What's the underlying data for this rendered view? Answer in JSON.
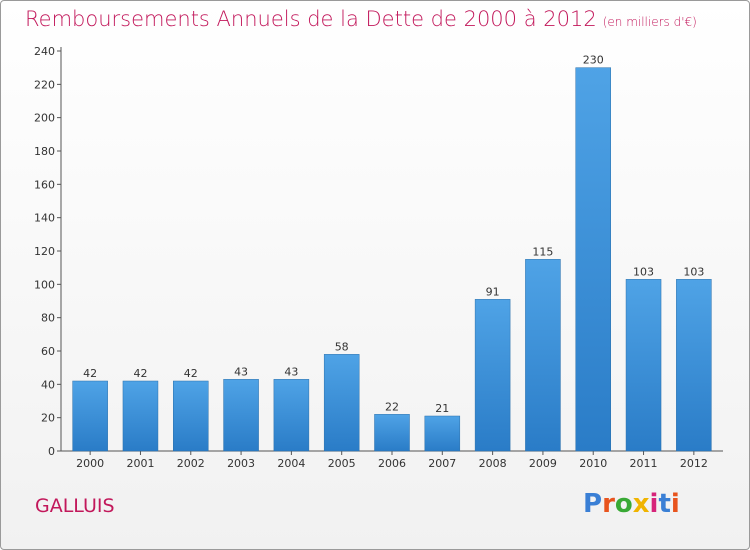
{
  "header": {
    "title": "Remboursements Annuels de la Dette de 2000 à 2012",
    "unit_note": "(en milliers d'€)"
  },
  "footer": {
    "commune": "GALLUIS",
    "logo_text": "Proxiti",
    "logo_colors": [
      "#3a7fd5",
      "#e8541e",
      "#39a935",
      "#f0b400",
      "#d6247a",
      "#3a7fd5",
      "#e8541e"
    ]
  },
  "chart_data": {
    "type": "bar",
    "title": "Remboursements Annuels de la Dette de 2000 à 2012",
    "subtitle": "(en milliers d'€)",
    "xlabel": "",
    "ylabel": "",
    "categories": [
      "2000",
      "2001",
      "2002",
      "2003",
      "2004",
      "2005",
      "2006",
      "2007",
      "2008",
      "2009",
      "2010",
      "2011",
      "2012"
    ],
    "values": [
      42,
      42,
      42,
      43,
      43,
      58,
      22,
      21,
      91,
      115,
      230,
      103,
      103
    ],
    "ylim": [
      0,
      240
    ],
    "yticks": [
      0,
      20,
      40,
      60,
      80,
      100,
      120,
      140,
      160,
      180,
      200,
      220,
      240
    ],
    "grid": false,
    "bar_color": "#4fa3e6",
    "bar_color_dark": "#2a7cc7",
    "title_color": "#c2185b"
  }
}
